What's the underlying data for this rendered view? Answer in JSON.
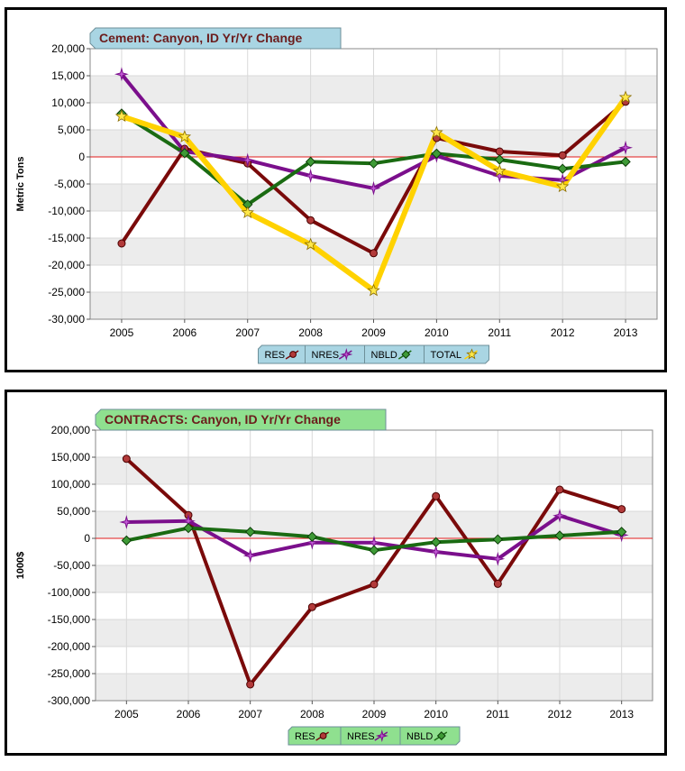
{
  "colors": {
    "res": "#7a0a0a",
    "nres": "#7b0f8c",
    "nbld": "#1a6b12",
    "total": "#ffd200",
    "zero_line": "#e01b1b",
    "band": "#ececec",
    "title_bg_1": "#a9d5e3",
    "title_bg_2": "#8fe08f"
  },
  "chart_data": [
    {
      "type": "line",
      "title": "Cement: Canyon, ID  Yr/Yr Change",
      "ylabel": "Metric Tons",
      "xlabel": "",
      "x": [
        "2005",
        "2006",
        "2007",
        "2008",
        "2009",
        "2010",
        "2011",
        "2012",
        "2013"
      ],
      "ylim": [
        -30000,
        20000
      ],
      "yticks": [
        -30000,
        -25000,
        -20000,
        -15000,
        -10000,
        -5000,
        0,
        5000,
        10000,
        15000,
        20000
      ],
      "ytick_labels": [
        "-30,000",
        "-25,000",
        "-20,000",
        "-15,000",
        "-10,000",
        "-5,000",
        "0",
        "5,000",
        "10,000",
        "15,000",
        "20,000"
      ],
      "grid": true,
      "legend": "bottom-center",
      "series": [
        {
          "name": "RES",
          "marker": "circle",
          "color": "#7a0a0a",
          "values": [
            -16000,
            1500,
            -1200,
            -11700,
            -17800,
            3500,
            1000,
            300,
            10200
          ]
        },
        {
          "name": "NRES",
          "marker": "star4",
          "color": "#7b0f8c",
          "values": [
            15300,
            1000,
            -600,
            -3500,
            -5800,
            200,
            -3500,
            -4300,
            1700
          ]
        },
        {
          "name": "NBLD",
          "marker": "diamond",
          "color": "#1a6b12",
          "values": [
            8000,
            700,
            -8800,
            -900,
            -1200,
            600,
            -500,
            -2200,
            -900
          ]
        },
        {
          "name": "TOTAL",
          "marker": "star5",
          "color": "#ffd200",
          "values": [
            7500,
            3700,
            -10300,
            -16200,
            -24700,
            4500,
            -2600,
            -5500,
            11000
          ]
        }
      ]
    },
    {
      "type": "line",
      "title": "CONTRACTS: Canyon, ID  Yr/Yr Change",
      "ylabel": "1000$",
      "xlabel": "",
      "x": [
        "2005",
        "2006",
        "2007",
        "2008",
        "2009",
        "2010",
        "2011",
        "2012",
        "2013"
      ],
      "ylim": [
        -300000,
        200000
      ],
      "yticks": [
        -300000,
        -250000,
        -200000,
        -150000,
        -100000,
        -50000,
        0,
        50000,
        100000,
        150000,
        200000
      ],
      "ytick_labels": [
        "-300,000",
        "-250,000",
        "-200,000",
        "-150,000",
        "-100,000",
        "-50,000",
        "0",
        "50,000",
        "100,000",
        "150,000",
        "200,000"
      ],
      "grid": true,
      "legend": "bottom-center",
      "series": [
        {
          "name": "RES",
          "marker": "circle",
          "color": "#7a0a0a",
          "values": [
            147000,
            43000,
            -270000,
            -127000,
            -85000,
            78000,
            -84000,
            90000,
            54000
          ]
        },
        {
          "name": "NRES",
          "marker": "star4",
          "color": "#7b0f8c",
          "values": [
            30000,
            32000,
            -32000,
            -8000,
            -8000,
            -25000,
            -38000,
            42000,
            6000
          ]
        },
        {
          "name": "NBLD",
          "marker": "diamond",
          "color": "#1a6b12",
          "values": [
            -4000,
            19000,
            12000,
            3000,
            -22000,
            -7000,
            -2000,
            5000,
            12000
          ]
        }
      ]
    }
  ]
}
